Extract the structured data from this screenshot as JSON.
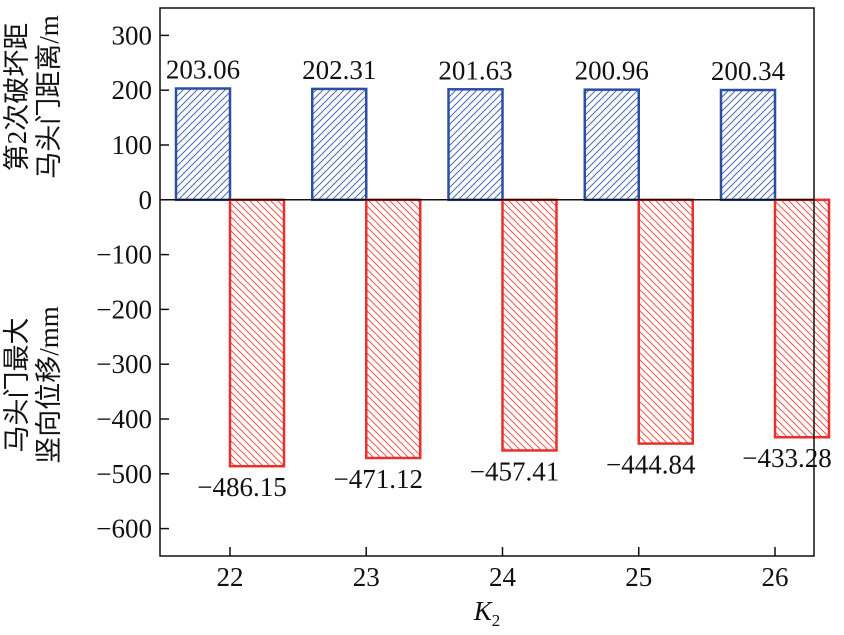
{
  "chart_data": {
    "type": "bar",
    "categories": [
      "22",
      "23",
      "24",
      "25",
      "26"
    ],
    "xlabel": "K",
    "xlabel_subscript": "2",
    "ylabel_top": [
      "第2次破坏距",
      "马头门距离/m"
    ],
    "ylabel_bottom": [
      "马头门最大",
      "竖向位移/mm"
    ],
    "ylim": [
      -650,
      350
    ],
    "yticks": [
      300,
      200,
      100,
      0,
      -100,
      -200,
      -300,
      -400,
      -500,
      -600
    ],
    "ytick_labels": [
      "300",
      "200",
      "100",
      "0",
      "−100",
      "−200",
      "−300",
      "−400",
      "−500",
      "−600"
    ],
    "grid": false,
    "legend": "none",
    "series": [
      {
        "values": [
          203.06,
          202.31,
          201.63,
          200.96,
          200.34
        ],
        "labels": [
          "203.06",
          "202.31",
          "201.63",
          "200.96",
          "200.34"
        ],
        "color": "#2d4fa3",
        "hatch": "diagonal-up"
      },
      {
        "values": [
          -486.15,
          -471.12,
          -457.41,
          -444.84,
          -433.28
        ],
        "labels": [
          "−486.15",
          "−471.12",
          "−457.41",
          "−444.84",
          "−433.28"
        ],
        "color": "#e8302c",
        "hatch": "diagonal-down"
      }
    ]
  }
}
